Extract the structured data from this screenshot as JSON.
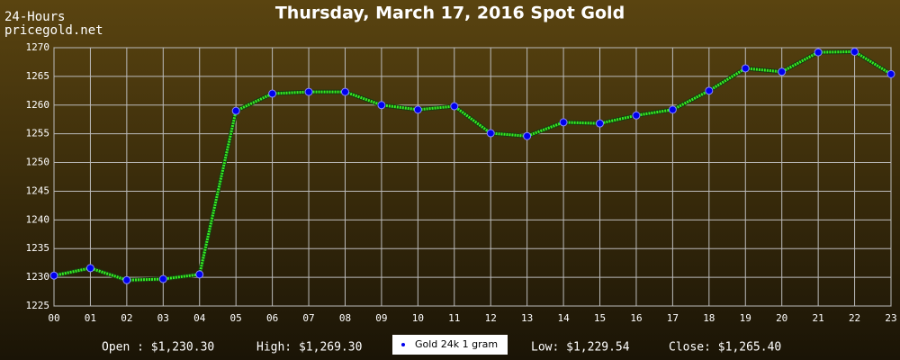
{
  "chart_data": {
    "type": "line",
    "title": "Thursday, March 17, 2016 Spot Gold",
    "subtitle": "24-Hours",
    "source": "pricegold.net",
    "categories": [
      "00",
      "01",
      "02",
      "03",
      "04",
      "05",
      "06",
      "07",
      "08",
      "09",
      "10",
      "11",
      "12",
      "13",
      "14",
      "15",
      "16",
      "17",
      "18",
      "19",
      "20",
      "21",
      "22",
      "23"
    ],
    "series": [
      {
        "name": "Gold 24k 1 gram",
        "color": "#33ee22",
        "values": [
          1230.3,
          1231.6,
          1229.5,
          1229.7,
          1230.5,
          1259.0,
          1262.0,
          1262.3,
          1262.3,
          1260.0,
          1259.2,
          1259.8,
          1255.1,
          1254.6,
          1257.0,
          1256.8,
          1258.2,
          1259.2,
          1262.5,
          1266.4,
          1265.8,
          1269.2,
          1269.3,
          1265.4
        ]
      }
    ],
    "ylim": [
      1225,
      1270
    ],
    "yticks": [
      1225,
      1230,
      1235,
      1240,
      1245,
      1250,
      1255,
      1260,
      1265,
      1270
    ],
    "grid": true,
    "stats": [
      "Open : $1,230.30",
      "High: $1,269.30",
      "Low: $1,229.54",
      "Close: $1,265.40"
    ]
  }
}
